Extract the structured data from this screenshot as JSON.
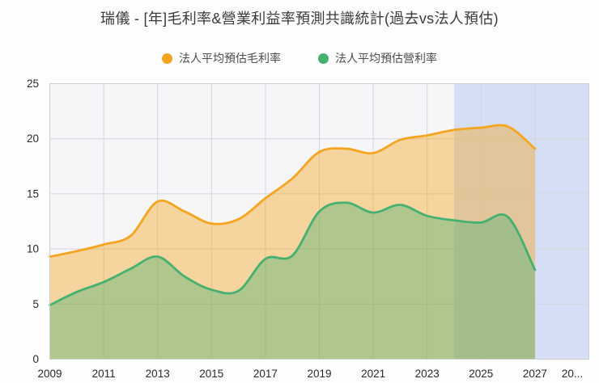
{
  "title": "瑞儀 - [年]毛利率&營業利益率預測共識統計(過去vs法人預估)",
  "legend": [
    {
      "label": "法人平均預估毛利率",
      "color": "#F5A41F"
    },
    {
      "label": "法人平均預估營利率",
      "color": "#44B172"
    }
  ],
  "chart_data": {
    "type": "area",
    "title": "瑞儀 - [年]毛利率&營業利益率預測共識統計(過去vs法人預估)",
    "x": [
      2009,
      2010,
      2011,
      2012,
      2013,
      2014,
      2015,
      2016,
      2017,
      2018,
      2019,
      2020,
      2021,
      2022,
      2023,
      2024,
      2025,
      2026,
      2027
    ],
    "series": [
      {
        "name": "法人平均預估毛利率",
        "color": "#F5A41F",
        "fill": "rgba(246,164,31,0.42)",
        "values": [
          9.3,
          9.8,
          10.4,
          11.2,
          14.3,
          13.4,
          12.3,
          12.7,
          14.6,
          16.4,
          18.8,
          19.1,
          18.7,
          19.9,
          20.3,
          20.8,
          21.0,
          21.1,
          19.1
        ]
      },
      {
        "name": "法人平均預估營利率",
        "color": "#44B172",
        "fill": "rgba(70,178,114,0.40)",
        "values": [
          4.9,
          6.1,
          7.0,
          8.2,
          9.3,
          7.5,
          6.3,
          6.2,
          9.1,
          9.4,
          13.4,
          14.2,
          13.3,
          14.0,
          13.0,
          12.6,
          12.4,
          12.9,
          8.1
        ]
      }
    ],
    "xlabel": "",
    "ylabel": "",
    "xlim": [
      2009,
      2029
    ],
    "ylim": [
      0,
      25
    ],
    "y_ticks": [
      0,
      5,
      10,
      15,
      20,
      25
    ],
    "x_tick_years": [
      2009,
      2011,
      2013,
      2015,
      2017,
      2019,
      2021,
      2023,
      2025,
      2027,
      2029
    ],
    "x_tick_labels": [
      "2009",
      "2011",
      "2013",
      "2015",
      "2017",
      "2019",
      "2021",
      "2023",
      "2025",
      "2027",
      "20..."
    ],
    "grid": true,
    "legend_position": "top",
    "forecast_region": {
      "start_year": 2024,
      "end_year": 2029,
      "color": "rgba(186,203,242,0.55)"
    },
    "plot_background": "#f6f6f8",
    "grid_color": "#d5d6da",
    "border_color": "#cfd0d4"
  }
}
